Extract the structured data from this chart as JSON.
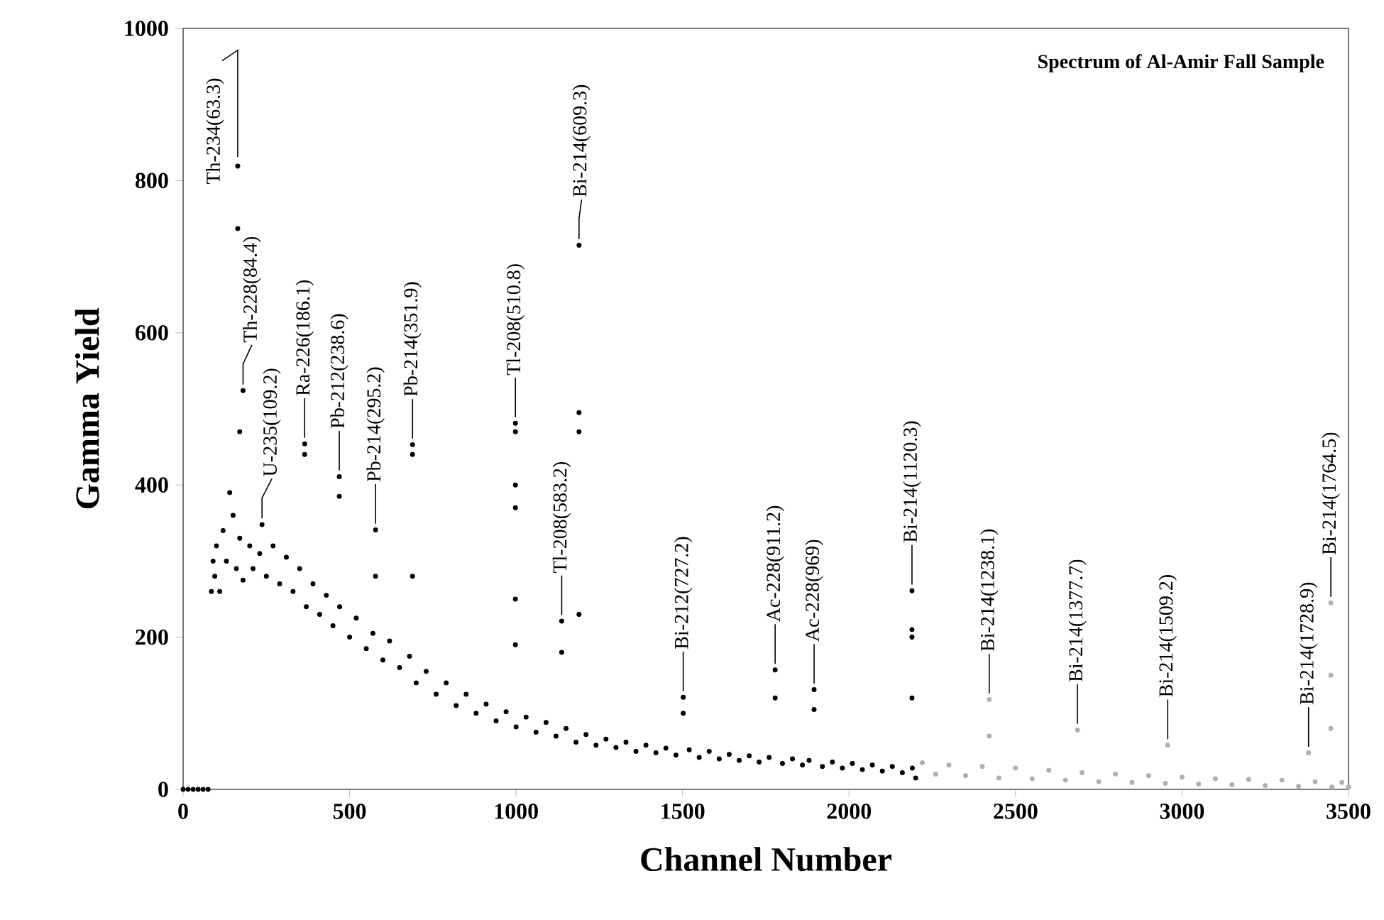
{
  "chart_data": {
    "type": "scatter",
    "title": "Spectrum of Al-Amir  Fall Sample",
    "xlabel": "Channel Number",
    "ylabel": "Gamma Yield",
    "xlim": [
      0,
      3500
    ],
    "xticks": [
      0,
      500,
      1000,
      1500,
      2000,
      2500,
      3000,
      3500
    ],
    "ylim": [
      0,
      1000
    ],
    "yticks": [
      0,
      200,
      400,
      600,
      800,
      1000
    ],
    "marker": "circle",
    "series": [
      {
        "color": "#000000",
        "x": [
          0,
          15,
          30,
          45,
          60,
          75,
          85,
          90,
          95,
          100,
          110,
          120,
          130,
          140,
          150,
          160,
          170,
          180,
          200,
          210,
          230,
          250,
          270,
          290,
          310,
          330,
          350,
          370,
          390,
          410,
          430,
          450,
          470,
          500,
          520,
          550,
          570,
          600,
          620,
          650,
          680,
          700,
          730,
          760,
          790,
          820,
          850,
          880,
          910,
          940,
          970,
          1000,
          1030,
          1060,
          1090,
          1120,
          1150,
          1180,
          1210,
          1240,
          1270,
          1300,
          1330,
          1360,
          1390,
          1420,
          1450,
          1480,
          1520,
          1550,
          1580,
          1610,
          1640,
          1670,
          1700,
          1730,
          1760,
          1800,
          1830,
          1860,
          1880,
          1920,
          1950,
          1980,
          2010,
          2040,
          2070,
          2100,
          2130,
          2160,
          2190,
          2200,
          164,
          164,
          180,
          170,
          237,
          365,
          365,
          469,
          469,
          578,
          578,
          689,
          689,
          689,
          998,
          998,
          998,
          998,
          998,
          998,
          1137,
          1137,
          1189,
          1189,
          1189,
          1189,
          1502,
          1502,
          1778,
          1778,
          1895,
          1895,
          2189,
          2189,
          2189,
          2189
        ],
        "values": [
          0,
          0,
          0,
          0,
          0,
          0,
          260,
          300,
          280,
          320,
          260,
          340,
          300,
          390,
          360,
          290,
          330,
          275,
          320,
          290,
          310,
          280,
          320,
          270,
          305,
          260,
          290,
          240,
          270,
          230,
          255,
          215,
          240,
          200,
          225,
          185,
          205,
          170,
          195,
          160,
          175,
          140,
          155,
          125,
          140,
          110,
          125,
          100,
          112,
          90,
          102,
          82,
          95,
          75,
          88,
          70,
          80,
          62,
          72,
          58,
          66,
          55,
          62,
          50,
          58,
          48,
          54,
          45,
          52,
          42,
          50,
          40,
          46,
          38,
          44,
          36,
          42,
          34,
          40,
          32,
          38,
          30,
          36,
          28,
          34,
          26,
          32,
          24,
          30,
          22,
          28,
          15,
          819,
          737,
          524,
          470,
          348,
          454,
          440,
          411,
          385,
          341,
          280,
          453,
          440,
          280,
          481,
          470,
          400,
          370,
          250,
          190,
          221,
          180,
          715,
          495,
          470,
          230,
          121,
          100,
          157,
          120,
          131,
          105,
          261,
          210,
          200,
          120
        ]
      },
      {
        "color": "#b0b0b0",
        "x": [
          2220,
          2260,
          2300,
          2350,
          2400,
          2421,
          2421,
          2450,
          2500,
          2550,
          2600,
          2650,
          2686,
          2700,
          2750,
          2800,
          2850,
          2900,
          2957,
          2950,
          3000,
          3050,
          3100,
          3150,
          3200,
          3250,
          3300,
          3350,
          3380,
          3400,
          3447,
          3447,
          3447,
          3450,
          3480,
          3500
        ],
        "values": [
          35,
          20,
          32,
          18,
          30,
          118,
          70,
          15,
          28,
          14,
          25,
          12,
          78,
          22,
          10,
          20,
          9,
          18,
          58,
          8,
          16,
          7,
          14,
          6,
          13,
          5,
          12,
          4,
          48,
          10,
          245,
          150,
          80,
          3,
          9,
          3
        ]
      }
    ],
    "annotations": [
      {
        "text": "Th-234(63.3)",
        "x": 164,
        "y": 819
      },
      {
        "text": "Th-228(84.4)",
        "x": 180,
        "y": 524
      },
      {
        "text": "U-235(109.2)",
        "x": 237,
        "y": 348
      },
      {
        "text": "Ra-226(186.1)",
        "x": 365,
        "y": 454
      },
      {
        "text": "Pb-212(238.6)",
        "x": 469,
        "y": 411
      },
      {
        "text": "Pb-214(295.2)",
        "x": 578,
        "y": 341
      },
      {
        "text": "Pb-214(351.9)",
        "x": 689,
        "y": 453
      },
      {
        "text": "Tl-208(510.8)",
        "x": 998,
        "y": 481
      },
      {
        "text": "Tl-208(583.2)",
        "x": 1137,
        "y": 221
      },
      {
        "text": "Bi-214(609.3)",
        "x": 1189,
        "y": 715
      },
      {
        "text": "Bi-212(727.2)",
        "x": 1502,
        "y": 121
      },
      {
        "text": "Ac-228(911.2)",
        "x": 1778,
        "y": 157
      },
      {
        "text": "Ac-228(969)",
        "x": 1895,
        "y": 131
      },
      {
        "text": "Bi-214(1120.3)",
        "x": 2189,
        "y": 261
      },
      {
        "text": "Bi-214(1238.1)",
        "x": 2421,
        "y": 118
      },
      {
        "text": "Bi-214(1377.7)",
        "x": 2686,
        "y": 78
      },
      {
        "text": "Bi-214(1509.2)",
        "x": 2957,
        "y": 58
      },
      {
        "text": "Bi-214(1728.9)",
        "x": 3380,
        "y": 48
      },
      {
        "text": "Bi-214(1764.5)",
        "x": 3447,
        "y": 245
      }
    ]
  }
}
